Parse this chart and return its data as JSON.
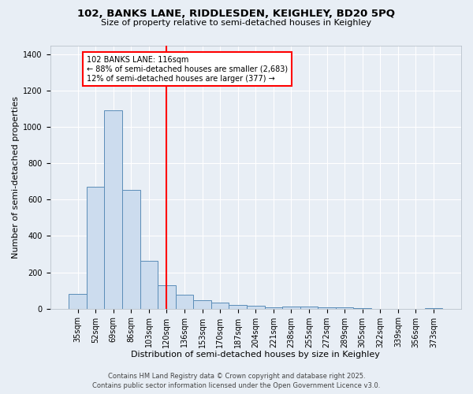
{
  "title_line1": "102, BANKS LANE, RIDDLESDEN, KEIGHLEY, BD20 5PQ",
  "title_line2": "Size of property relative to semi-detached houses in Keighley",
  "xlabel": "Distribution of semi-detached houses by size in Keighley",
  "ylabel": "Number of semi-detached properties",
  "categories": [
    "35sqm",
    "52sqm",
    "69sqm",
    "86sqm",
    "103sqm",
    "120sqm",
    "136sqm",
    "153sqm",
    "170sqm",
    "187sqm",
    "204sqm",
    "221sqm",
    "238sqm",
    "255sqm",
    "272sqm",
    "289sqm",
    "305sqm",
    "322sqm",
    "339sqm",
    "356sqm",
    "373sqm"
  ],
  "values": [
    80,
    670,
    1090,
    655,
    265,
    130,
    75,
    45,
    35,
    22,
    15,
    8,
    12,
    10,
    5,
    8,
    3,
    0,
    0,
    0,
    2
  ],
  "bar_color": "#ccdcee",
  "bar_edge_color": "#5b8db8",
  "vline_pos": 5.0,
  "vline_color": "red",
  "annotation_title": "102 BANKS LANE: 116sqm",
  "annotation_line1": "← 88% of semi-detached houses are smaller (2,683)",
  "annotation_line2": "12% of semi-detached houses are larger (377) →",
  "ylim": [
    0,
    1450
  ],
  "yticks": [
    0,
    200,
    400,
    600,
    800,
    1000,
    1200,
    1400
  ],
  "footer_line1": "Contains HM Land Registry data © Crown copyright and database right 2025.",
  "footer_line2": "Contains public sector information licensed under the Open Government Licence v3.0.",
  "bg_color": "#e8eef5",
  "grid_color": "white",
  "title_fontsize": 9.5,
  "subtitle_fontsize": 8,
  "axis_label_fontsize": 8,
  "tick_fontsize": 7,
  "annotation_fontsize": 7,
  "footer_fontsize": 6
}
